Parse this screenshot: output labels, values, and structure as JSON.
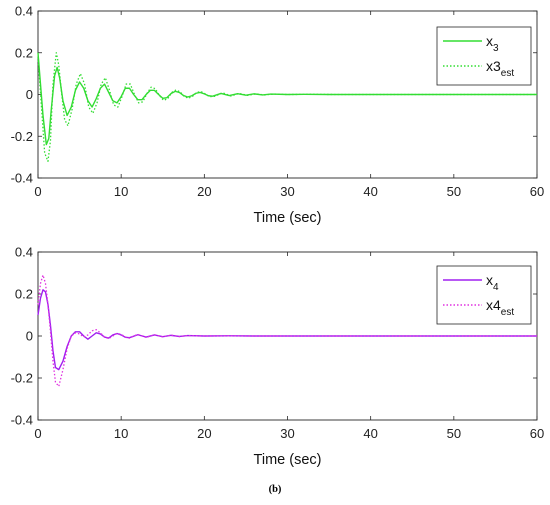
{
  "caption": "(b)",
  "chart_data": [
    {
      "type": "line",
      "xlabel": "Time (sec)",
      "ylabel": "",
      "xlim": [
        0,
        60
      ],
      "ylim": [
        -0.4,
        0.4
      ],
      "xticks": [
        "0",
        "10",
        "20",
        "30",
        "40",
        "50",
        "60"
      ],
      "yticks": [
        "0.4",
        "0.2",
        "0",
        "-0.2",
        "-0.4"
      ],
      "legend_position": "top-right",
      "series": [
        {
          "name": "x3",
          "legend_base": "x",
          "legend_sub": "3",
          "color": "#33dd33",
          "style": "solid",
          "points": [
            [
              0,
              0.2
            ],
            [
              0.3,
              0.05
            ],
            [
              0.6,
              -0.1
            ],
            [
              1,
              -0.24
            ],
            [
              1.3,
              -0.21
            ],
            [
              1.6,
              -0.07
            ],
            [
              2,
              0.09
            ],
            [
              2.3,
              0.13
            ],
            [
              2.6,
              0.08
            ],
            [
              3,
              -0.03
            ],
            [
              3.5,
              -0.1
            ],
            [
              4,
              -0.06
            ],
            [
              4.5,
              0.02
            ],
            [
              5,
              0.06
            ],
            [
              5.5,
              0.03
            ],
            [
              6,
              -0.03
            ],
            [
              6.5,
              -0.06
            ],
            [
              7,
              -0.02
            ],
            [
              7.5,
              0.03
            ],
            [
              8,
              0.05
            ],
            [
              8.5,
              0.01
            ],
            [
              9,
              -0.03
            ],
            [
              9.5,
              -0.04
            ],
            [
              10,
              -0.01
            ],
            [
              10.5,
              0.03
            ],
            [
              11,
              0.03
            ],
            [
              11.5,
              0.0
            ],
            [
              12,
              -0.025
            ],
            [
              12.5,
              -0.025
            ],
            [
              13,
              0.0
            ],
            [
              13.5,
              0.02
            ],
            [
              14,
              0.02
            ],
            [
              14.5,
              0.0
            ],
            [
              15,
              -0.018
            ],
            [
              15.5,
              -0.015
            ],
            [
              16,
              0.005
            ],
            [
              16.5,
              0.015
            ],
            [
              17,
              0.01
            ],
            [
              17.5,
              -0.005
            ],
            [
              18,
              -0.012
            ],
            [
              18.5,
              -0.006
            ],
            [
              19,
              0.006
            ],
            [
              19.5,
              0.01
            ],
            [
              20,
              0.003
            ],
            [
              20.5,
              -0.006
            ],
            [
              21,
              -0.008
            ],
            [
              22,
              0.005
            ],
            [
              23,
              -0.005
            ],
            [
              24,
              0.004
            ],
            [
              25,
              -0.003
            ],
            [
              26,
              0.003
            ],
            [
              27,
              -0.002
            ],
            [
              28,
              0.002
            ],
            [
              30,
              0.0
            ],
            [
              32,
              0.001
            ],
            [
              35,
              0.0
            ],
            [
              40,
              0.0
            ],
            [
              50,
              0.0
            ],
            [
              60,
              0.0
            ]
          ]
        },
        {
          "name": "x3est",
          "legend_base": "x3",
          "legend_sub": "est",
          "color": "#33dd33",
          "style": "dotted",
          "points": [
            [
              0,
              0.18
            ],
            [
              0.4,
              -0.05
            ],
            [
              0.8,
              -0.28
            ],
            [
              1.2,
              -0.32
            ],
            [
              1.5,
              -0.22
            ],
            [
              1.8,
              0.05
            ],
            [
              2.2,
              0.2
            ],
            [
              2.5,
              0.14
            ],
            [
              2.8,
              0.02
            ],
            [
              3.2,
              -0.12
            ],
            [
              3.6,
              -0.15
            ],
            [
              4.1,
              -0.07
            ],
            [
              4.6,
              0.05
            ],
            [
              5.1,
              0.1
            ],
            [
              5.6,
              0.05
            ],
            [
              6.1,
              -0.06
            ],
            [
              6.6,
              -0.09
            ],
            [
              7.1,
              -0.04
            ],
            [
              7.6,
              0.05
            ],
            [
              8.1,
              0.08
            ],
            [
              8.6,
              0.02
            ],
            [
              9.1,
              -0.05
            ],
            [
              9.6,
              -0.06
            ],
            [
              10.1,
              -0.01
            ],
            [
              10.6,
              0.05
            ],
            [
              11.1,
              0.05
            ],
            [
              11.6,
              0.0
            ],
            [
              12.1,
              -0.04
            ],
            [
              12.6,
              -0.035
            ],
            [
              13.1,
              0.005
            ],
            [
              13.6,
              0.035
            ],
            [
              14.1,
              0.028
            ],
            [
              14.6,
              -0.005
            ],
            [
              15.1,
              -0.028
            ],
            [
              15.6,
              -0.02
            ],
            [
              16.1,
              0.01
            ],
            [
              16.6,
              0.022
            ],
            [
              17.1,
              0.012
            ],
            [
              17.6,
              -0.01
            ],
            [
              18.1,
              -0.018
            ],
            [
              18.6,
              -0.008
            ],
            [
              19.1,
              0.01
            ],
            [
              19.6,
              0.014
            ],
            [
              20.1,
              0.003
            ],
            [
              20.6,
              -0.01
            ],
            [
              21.2,
              -0.009
            ],
            [
              22.2,
              0.008
            ],
            [
              23.2,
              -0.007
            ],
            [
              24.2,
              0.005
            ],
            [
              25.2,
              -0.004
            ],
            [
              26.2,
              0.003
            ],
            [
              27.2,
              -0.002
            ],
            [
              28.5,
              0.002
            ],
            [
              30,
              0.0
            ],
            [
              33,
              0.001
            ],
            [
              36,
              0.0
            ],
            [
              40,
              0.0
            ],
            [
              50,
              0.0
            ],
            [
              60,
              0.0
            ]
          ]
        }
      ]
    },
    {
      "type": "line",
      "xlabel": "Time (sec)",
      "ylabel": "",
      "xlim": [
        0,
        60
      ],
      "ylim": [
        -0.4,
        0.4
      ],
      "xticks": [
        "0",
        "10",
        "20",
        "30",
        "40",
        "50",
        "60"
      ],
      "yticks": [
        "0.4",
        "0.2",
        "0",
        "-0.2",
        "-0.4"
      ],
      "legend_position": "top-right",
      "series": [
        {
          "name": "x4",
          "legend_base": "x",
          "legend_sub": "4",
          "color": "#a020f0",
          "style": "solid",
          "points": [
            [
              0,
              0.1
            ],
            [
              0.3,
              0.18
            ],
            [
              0.6,
              0.22
            ],
            [
              0.9,
              0.21
            ],
            [
              1.2,
              0.15
            ],
            [
              1.5,
              0.05
            ],
            [
              1.8,
              -0.07
            ],
            [
              2.1,
              -0.15
            ],
            [
              2.5,
              -0.16
            ],
            [
              3,
              -0.12
            ],
            [
              3.5,
              -0.05
            ],
            [
              4,
              0.0
            ],
            [
              4.5,
              0.02
            ],
            [
              5,
              0.02
            ],
            [
              5.5,
              0.0
            ],
            [
              6,
              -0.015
            ],
            [
              6.5,
              0.0
            ],
            [
              7,
              0.015
            ],
            [
              7.5,
              0.01
            ],
            [
              8,
              -0.005
            ],
            [
              8.5,
              -0.01
            ],
            [
              9,
              0.005
            ],
            [
              9.5,
              0.012
            ],
            [
              10,
              0.005
            ],
            [
              10.5,
              -0.006
            ],
            [
              11,
              -0.008
            ],
            [
              12,
              0.006
            ],
            [
              13,
              -0.005
            ],
            [
              14,
              0.005
            ],
            [
              15,
              -0.003
            ],
            [
              16,
              0.003
            ],
            [
              17,
              -0.002
            ],
            [
              18,
              0.002
            ],
            [
              20,
              0.0
            ],
            [
              23,
              0.001
            ],
            [
              26,
              0.0
            ],
            [
              30,
              0.0
            ],
            [
              40,
              0.0
            ],
            [
              50,
              0.0
            ],
            [
              60,
              0.0
            ]
          ]
        },
        {
          "name": "x4est",
          "legend_base": "x4",
          "legend_sub": "est",
          "color": "#e030e0",
          "style": "dotted",
          "points": [
            [
              0,
              0.15
            ],
            [
              0.3,
              0.25
            ],
            [
              0.6,
              0.29
            ],
            [
              0.9,
              0.25
            ],
            [
              1.2,
              0.15
            ],
            [
              1.5,
              0.02
            ],
            [
              1.8,
              -0.12
            ],
            [
              2.1,
              -0.22
            ],
            [
              2.5,
              -0.24
            ],
            [
              3,
              -0.16
            ],
            [
              3.5,
              -0.06
            ],
            [
              4,
              0.0
            ],
            [
              4.5,
              0.015
            ],
            [
              5,
              0.01
            ],
            [
              5.5,
              -0.005
            ],
            [
              6,
              0.005
            ],
            [
              6.5,
              0.025
            ],
            [
              7,
              0.03
            ],
            [
              7.5,
              0.015
            ],
            [
              8,
              -0.005
            ],
            [
              8.5,
              -0.012
            ],
            [
              9,
              0.0
            ],
            [
              9.5,
              0.012
            ],
            [
              10,
              0.008
            ],
            [
              10.5,
              -0.005
            ],
            [
              11,
              -0.01
            ],
            [
              12,
              0.008
            ],
            [
              13,
              -0.007
            ],
            [
              14,
              0.006
            ],
            [
              15,
              -0.004
            ],
            [
              16,
              0.004
            ],
            [
              17,
              -0.003
            ],
            [
              18,
              0.002
            ],
            [
              20,
              0.0
            ],
            [
              23,
              0.001
            ],
            [
              26,
              0.0
            ],
            [
              30,
              0.0
            ],
            [
              40,
              0.0
            ],
            [
              50,
              0.0
            ],
            [
              60,
              0.0
            ]
          ]
        }
      ]
    }
  ]
}
